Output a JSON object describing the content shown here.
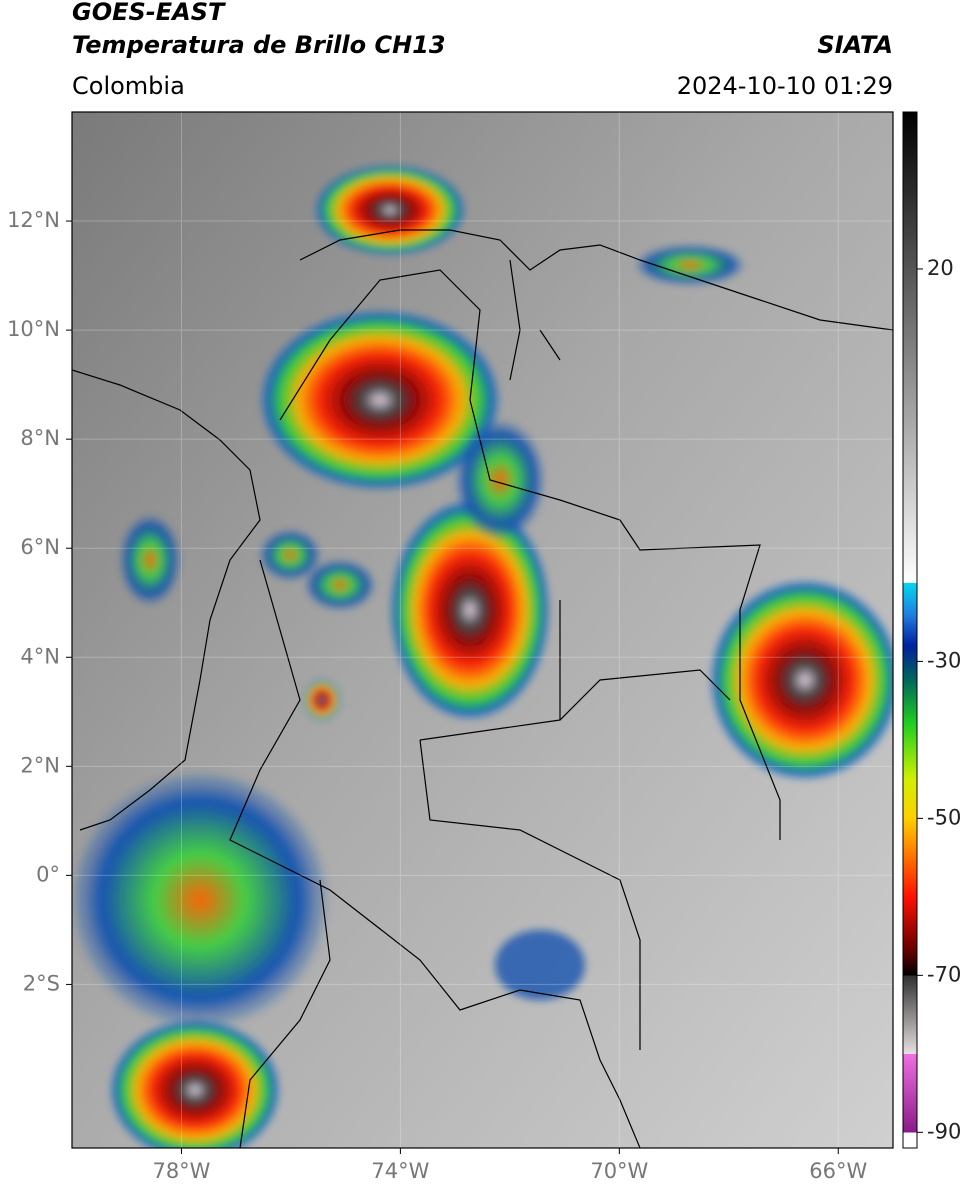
{
  "header": {
    "line1": "GOES-EAST",
    "line2": "Temperatura de Brillo CH13",
    "region": "Colombia",
    "source": "SIATA",
    "datetime": "2024-10-10 01:29"
  },
  "map": {
    "lonlim": [
      -80,
      -65
    ],
    "latlim": [
      -5,
      14
    ],
    "lonticks": [
      {
        "value": -78,
        "label": "78°W"
      },
      {
        "value": -74,
        "label": "74°W"
      },
      {
        "value": -70,
        "label": "70°W"
      },
      {
        "value": -66,
        "label": "66°W"
      }
    ],
    "latticks": [
      {
        "value": 12,
        "label": "12°N"
      },
      {
        "value": 10,
        "label": "10°N"
      },
      {
        "value": 8,
        "label": "8°N"
      },
      {
        "value": 6,
        "label": "6°N"
      },
      {
        "value": 4,
        "label": "4°N"
      },
      {
        "value": 2,
        "label": "2°N"
      },
      {
        "value": 0,
        "label": "0°"
      },
      {
        "value": -2,
        "label": "2°S"
      }
    ],
    "grid": true
  },
  "colorbar": {
    "lim": [
      -92,
      40
    ],
    "ticks": [
      20,
      -30,
      -50,
      -70,
      -90
    ],
    "stops": [
      {
        "value": -92,
        "color": "#ffffff"
      },
      {
        "value": -90,
        "color": "#ffffff"
      },
      {
        "value": -90,
        "color": "#8a1a8a"
      },
      {
        "value": -80,
        "color": "#f070e0"
      },
      {
        "value": -80,
        "color": "#e8e0e0"
      },
      {
        "value": -70,
        "color": "#303030"
      },
      {
        "value": -70,
        "color": "#000000"
      },
      {
        "value": -67,
        "color": "#600000"
      },
      {
        "value": -60,
        "color": "#ff1000"
      },
      {
        "value": -50,
        "color": "#ffd000"
      },
      {
        "value": -45,
        "color": "#d0f000"
      },
      {
        "value": -38,
        "color": "#20d020"
      },
      {
        "value": -32,
        "color": "#006060"
      },
      {
        "value": -28,
        "color": "#0020a0"
      },
      {
        "value": -24,
        "color": "#2080e0"
      },
      {
        "value": -20,
        "color": "#00d8f0"
      },
      {
        "value": -20,
        "color": "#ffffff"
      },
      {
        "value": 40,
        "color": "#000000"
      }
    ]
  }
}
